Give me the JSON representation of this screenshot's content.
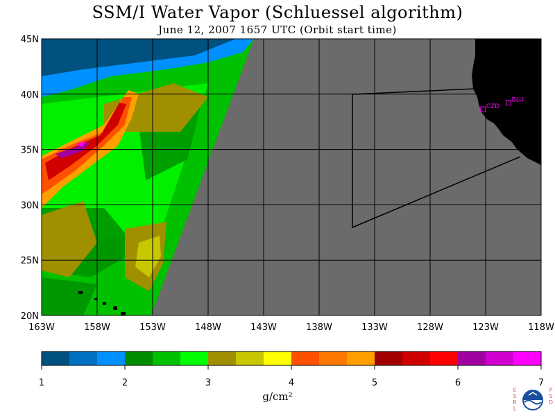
{
  "header": {
    "title": "SSM/I Water Vapor (Schluessel algorithm)",
    "subtitle": "June 12, 2007  1657 UTC  (Orbit start time)"
  },
  "map": {
    "lat_labels": [
      "45N",
      "40N",
      "35N",
      "30N",
      "25N",
      "20N"
    ],
    "lon_labels": [
      "163W",
      "158W",
      "153W",
      "148W",
      "143W",
      "138W",
      "133W",
      "128W",
      "123W",
      "118W"
    ],
    "lat_range": [
      20,
      45
    ],
    "lon_range": [
      -163,
      -118
    ],
    "sites": [
      {
        "name": "CZD",
        "lat": 38.6,
        "lon": -123.2
      },
      {
        "name": "BLU",
        "lat": 39.2,
        "lon": -120.9
      }
    ],
    "colors": {
      "no_data": "#6b6b6b",
      "land": "#000000",
      "boundary_line": "#000000",
      "site_marker": "#ff00ff"
    }
  },
  "colorbar": {
    "label": "g/cm²",
    "ticks": [
      "1",
      "2",
      "3",
      "4",
      "5",
      "6",
      "7"
    ],
    "range": [
      1,
      7
    ],
    "colors": [
      "#005080",
      "#0070c0",
      "#0090ff",
      "#008c00",
      "#00c000",
      "#00ff00",
      "#a09000",
      "#c8c800",
      "#ffff00",
      "#ff5000",
      "#ff7800",
      "#ffa000",
      "#a00000",
      "#d00000",
      "#ff0000",
      "#a000a0",
      "#d000d0",
      "#ff00ff"
    ]
  },
  "logo": {
    "left_letters": [
      "E",
      "S",
      "R",
      "L"
    ],
    "right_letters": [
      "P",
      "S",
      "D"
    ],
    "badge_text": "NOAA"
  }
}
